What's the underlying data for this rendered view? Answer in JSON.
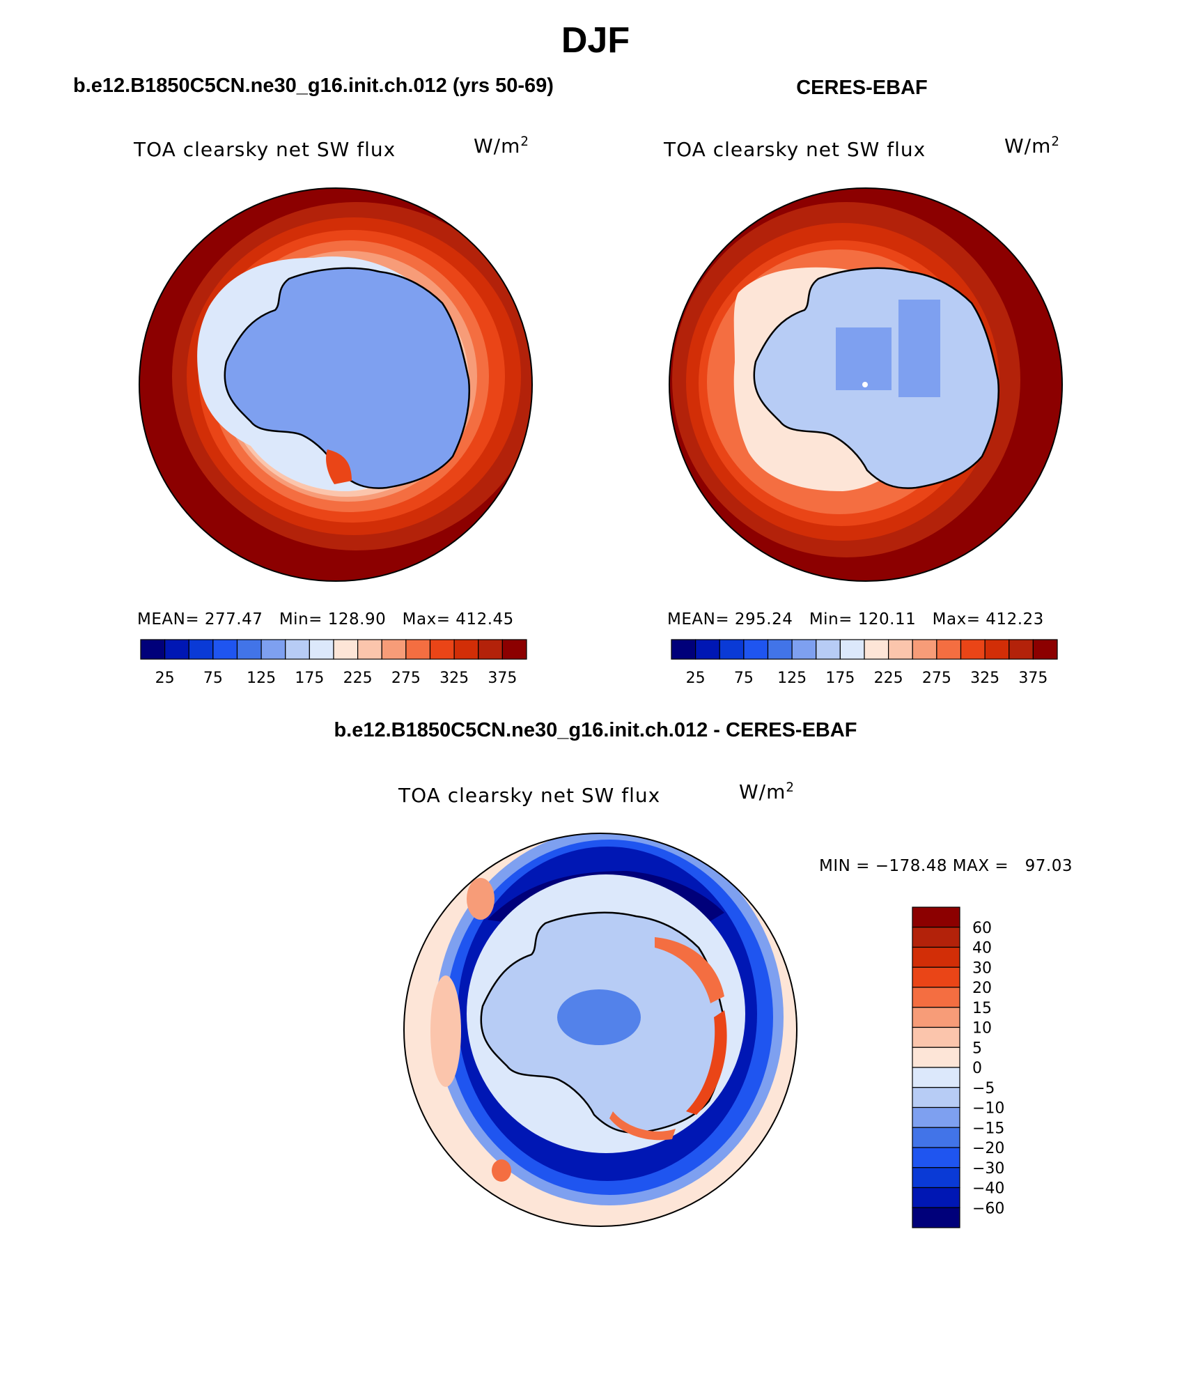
{
  "figure": {
    "season": "DJF",
    "case_title": "b.e12.B1850C5CN.ne30_g16.init.ch.012 (yrs 50-69)",
    "obs_title": "CERES-EBAF",
    "diff_title": "b.e12.B1850C5CN.ne30_g16.init.ch.012 - CERES-EBAF"
  },
  "panels": [
    {
      "id": "model",
      "variable": "TOA clearsky net SW flux",
      "units_base": "W/m",
      "units_exp": "2",
      "stats": {
        "mean_label": "MEAN=",
        "mean": "277.47",
        "min_label": "Min=",
        "min": "128.90",
        "max_label": "Max=",
        "max": "412.45"
      }
    },
    {
      "id": "obs",
      "variable": "TOA clearsky net SW flux",
      "units_base": "W/m",
      "units_exp": "2",
      "stats": {
        "mean_label": "MEAN=",
        "mean": "295.24",
        "min_label": "Min=",
        "min": "120.11",
        "max_label": "Max=",
        "max": "412.23"
      }
    },
    {
      "id": "diff",
      "variable": "TOA clearsky net SW flux",
      "units_base": "W/m",
      "units_exp": "2",
      "minmax": "MIN = −178.48 MAX =   97.03"
    }
  ],
  "colorbar_abs": {
    "colors": [
      "#00007a",
      "#0017b4",
      "#0a3ad6",
      "#1f55f0",
      "#4274e8",
      "#7ea0f0",
      "#b7ccf5",
      "#dce8fb",
      "#fde5d7",
      "#fbc5ac",
      "#f79c78",
      "#f46e41",
      "#ea4517",
      "#d22e07",
      "#b3220a",
      "#8c0000"
    ],
    "tick_labels": [
      "25",
      "75",
      "125",
      "175",
      "225",
      "275",
      "325",
      "375"
    ]
  },
  "colorbar_diff": {
    "colors": [
      "#00007a",
      "#0017b4",
      "#0a3ad6",
      "#1f55f0",
      "#4274e8",
      "#7ea0f0",
      "#b7ccf5",
      "#dce8fb",
      "#fde5d7",
      "#fbc5ac",
      "#f79c78",
      "#f46e41",
      "#ea4517",
      "#d22e07",
      "#b3220a",
      "#8c0000"
    ],
    "tick_labels": [
      "60",
      "40",
      "30",
      "20",
      "15",
      "10",
      "5",
      "0",
      "−5",
      "−10",
      "−15",
      "−20",
      "−30",
      "−40",
      "−60"
    ]
  }
}
